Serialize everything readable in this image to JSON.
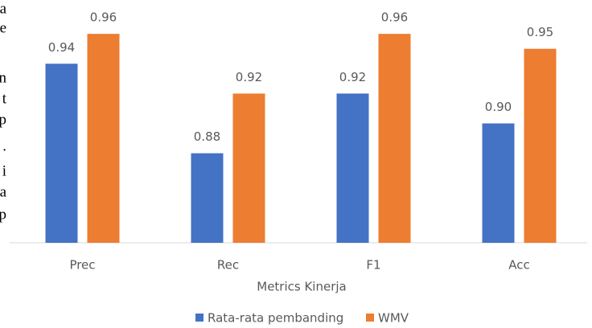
{
  "chart_data": {
    "type": "bar",
    "categories": [
      "Prec",
      "Rec",
      "F1",
      "Acc"
    ],
    "series": [
      {
        "name": "Rata-rata pembanding",
        "color": "#4472c4",
        "values": [
          0.94,
          0.88,
          0.92,
          0.9
        ],
        "value_labels": [
          "0.94",
          "0.88",
          "0.92",
          "0.90"
        ]
      },
      {
        "name": "WMV",
        "color": "#ed7d31",
        "values": [
          0.96,
          0.92,
          0.96,
          0.95
        ],
        "value_labels": [
          "0.96",
          "0.92",
          "0.96",
          "0.95"
        ]
      }
    ],
    "x_label": "Metrics Kinerja",
    "ylim": [
      0.82,
      0.98
    ],
    "legend": "bottom"
  },
  "margin_text": [
    "a",
    "e",
    "n",
    "t",
    "p",
    ".",
    "i",
    "a",
    "p"
  ]
}
